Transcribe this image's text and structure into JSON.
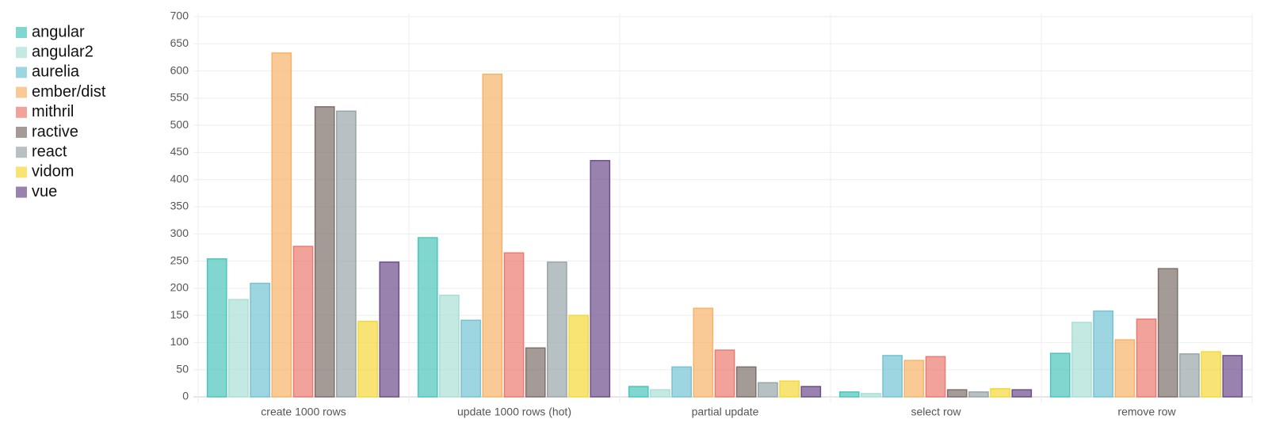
{
  "chart_data": {
    "type": "bar",
    "categories": [
      "create 1000 rows",
      "update 1000 rows (hot)",
      "partial update",
      "select row",
      "remove row"
    ],
    "series": [
      {
        "name": "angular",
        "color": "#4bc6bc",
        "values": [
          254,
          293,
          19,
          9,
          80
        ]
      },
      {
        "name": "angular2",
        "color": "#a9dfd6",
        "values": [
          179,
          187,
          13,
          6,
          137
        ]
      },
      {
        "name": "aurelia",
        "color": "#74c4d4",
        "values": [
          209,
          141,
          55,
          76,
          158
        ]
      },
      {
        "name": "ember/dist",
        "color": "#f6b46a",
        "values": [
          633,
          594,
          163,
          67,
          105
        ]
      },
      {
        "name": "mithril",
        "color": "#eb7b70",
        "values": [
          277,
          265,
          86,
          74,
          143
        ]
      },
      {
        "name": "ractive",
        "color": "#7e6f6a",
        "values": [
          534,
          90,
          55,
          13,
          236
        ]
      },
      {
        "name": "react",
        "color": "#98a6aa",
        "values": [
          526,
          248,
          26,
          9,
          79
        ]
      },
      {
        "name": "vidom",
        "color": "#f5d93a",
        "values": [
          139,
          150,
          29,
          15,
          83
        ]
      },
      {
        "name": "vue",
        "color": "#6e4f8c",
        "values": [
          248,
          435,
          19,
          13,
          76
        ]
      }
    ],
    "ylim": [
      0,
      700
    ],
    "yticks": [
      0,
      50,
      100,
      150,
      200,
      250,
      300,
      350,
      400,
      450,
      500,
      550,
      600,
      650,
      700
    ],
    "grid": true,
    "legend": "left"
  }
}
